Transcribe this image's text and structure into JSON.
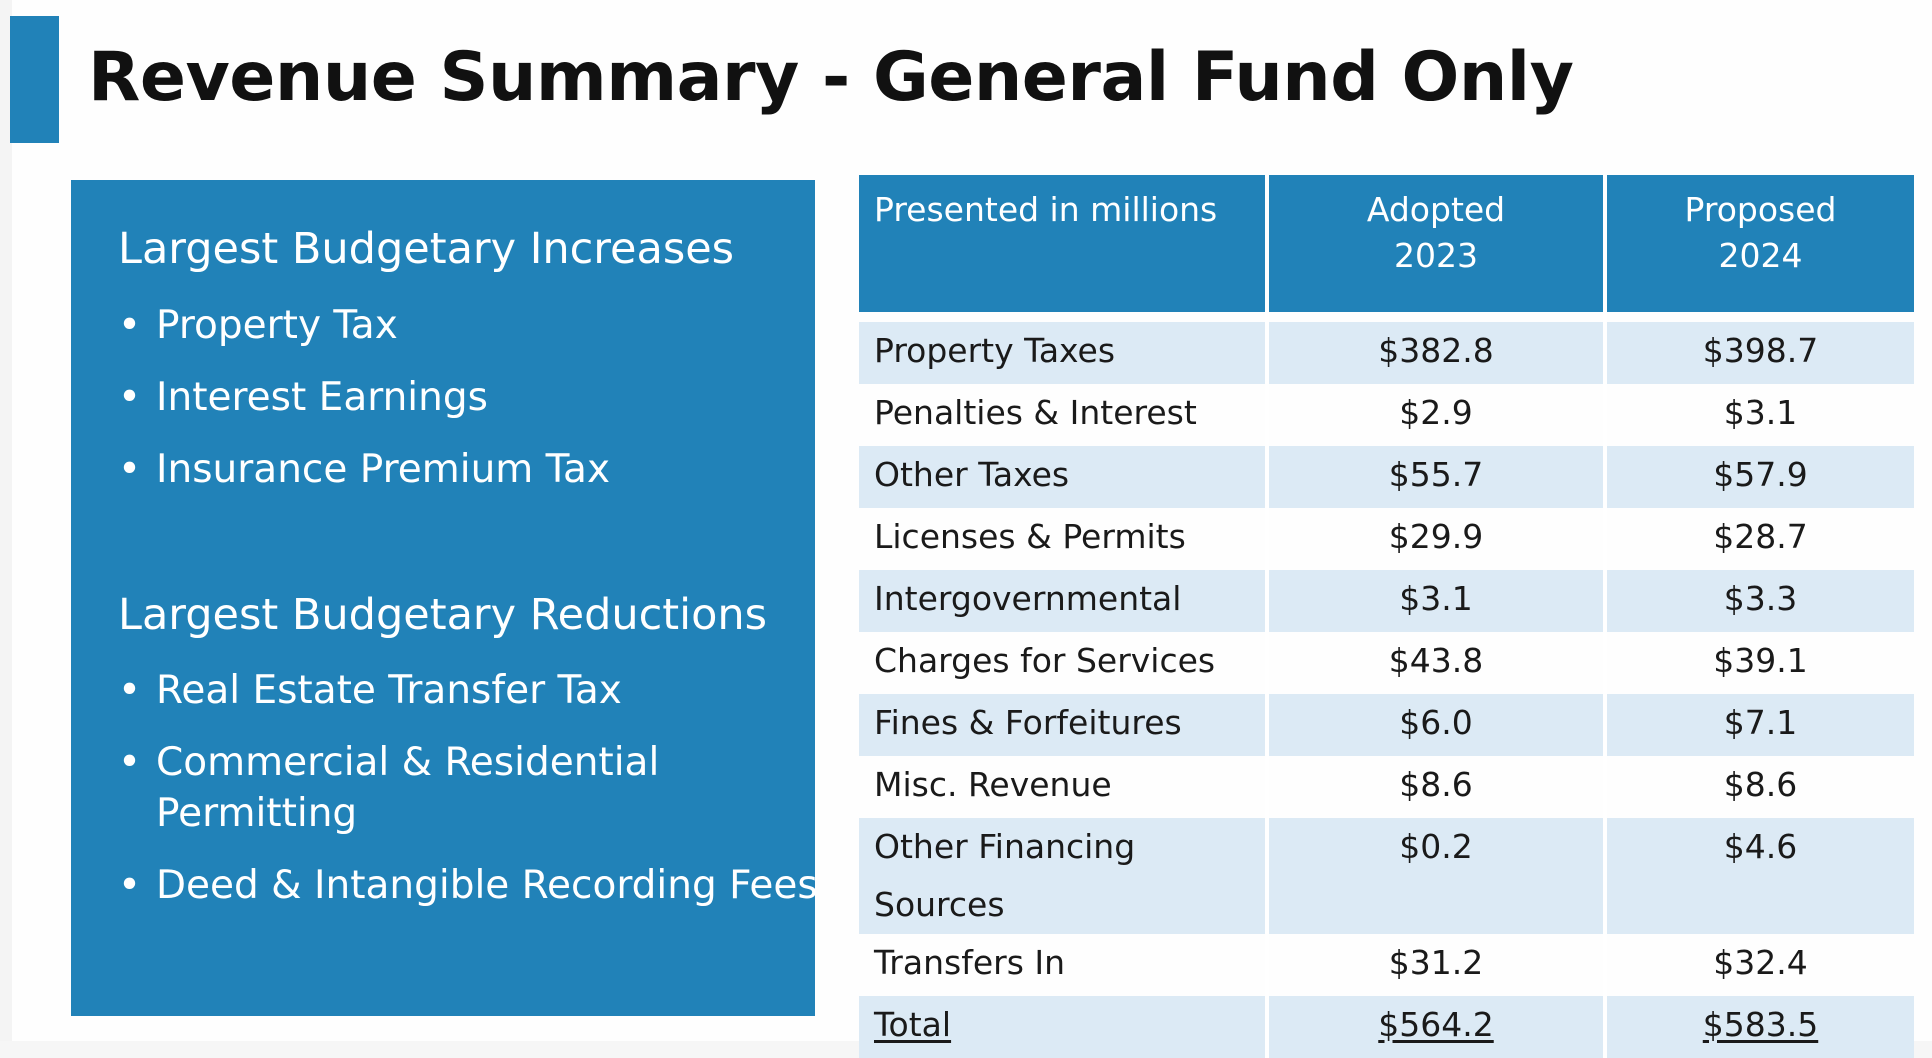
{
  "slide": {
    "title": "Revenue Summary - General Fund Only"
  },
  "left_panel": {
    "increases_heading": "Largest Budgetary Increases",
    "increases": [
      "Property Tax",
      "Interest Earnings",
      "Insurance Premium Tax"
    ],
    "reductions_heading": "Largest Budgetary Reductions",
    "reductions": [
      "Real Estate Transfer Tax",
      "Commercial & Residential Permitting",
      "Deed & Intangible Recording Fees"
    ],
    "bullet_glyph": "•"
  },
  "table": {
    "header": {
      "col1": "Presented in millions",
      "col2_line1": "Adopted",
      "col2_line2": "2023",
      "col3_line1": "Proposed",
      "col3_line2": "2024"
    },
    "rows": [
      {
        "label": "Property Taxes",
        "adopted_2023": "$382.8",
        "proposed_2024": "$398.7"
      },
      {
        "label": "Penalties & Interest",
        "adopted_2023": "$2.9",
        "proposed_2024": "$3.1"
      },
      {
        "label": "Other Taxes",
        "adopted_2023": "$55.7",
        "proposed_2024": "$57.9"
      },
      {
        "label": "Licenses & Permits",
        "adopted_2023": "$29.9",
        "proposed_2024": "$28.7"
      },
      {
        "label": "Intergovernmental",
        "adopted_2023": "$3.1",
        "proposed_2024": "$3.3"
      },
      {
        "label": "Charges for Services",
        "adopted_2023": "$43.8",
        "proposed_2024": "$39.1"
      },
      {
        "label": "Fines & Forfeitures",
        "adopted_2023": "$6.0",
        "proposed_2024": "$7.1"
      },
      {
        "label": "Misc. Revenue",
        "adopted_2023": "$8.6",
        "proposed_2024": "$8.6"
      },
      {
        "label": "Other Financing Sources",
        "adopted_2023": "$0.2",
        "proposed_2024": "$4.6"
      },
      {
        "label": "Transfers In",
        "adopted_2023": "$31.2",
        "proposed_2024": "$32.4"
      }
    ],
    "total": {
      "label": "Total",
      "adopted_2023": "$564.2",
      "proposed_2024": "$583.5"
    }
  },
  "colors": {
    "accent_blue": "#2182b8",
    "row_stripe": "#dceaf5",
    "text": "#111111"
  }
}
